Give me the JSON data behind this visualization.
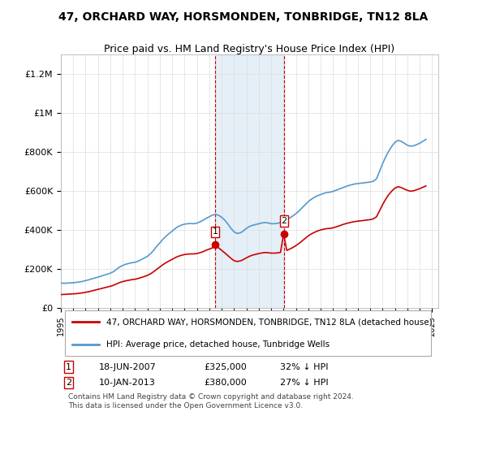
{
  "title": "47, ORCHARD WAY, HORSMONDEN, TONBRIDGE, TN12 8LA",
  "subtitle": "Price paid vs. HM Land Registry's House Price Index (HPI)",
  "ylabel_ticks": [
    "£0",
    "£200K",
    "£400K",
    "£600K",
    "£800K",
    "£1M",
    "£1.2M"
  ],
  "ytick_values": [
    0,
    200000,
    400000,
    600000,
    800000,
    1000000,
    1200000
  ],
  "ylim": [
    0,
    1300000
  ],
  "xlim_start": 1995.0,
  "xlim_end": 2025.5,
  "legend1_label": "47, ORCHARD WAY, HORSMONDEN, TONBRIDGE, TN12 8LA (detached house)",
  "legend2_label": "HPI: Average price, detached house, Tunbridge Wells",
  "sale1_date": 2007.46,
  "sale1_price": 325000,
  "sale1_label": "1",
  "sale1_text": "18-JUN-2007    £325,000    32% ↓ HPI",
  "sale2_date": 2013.03,
  "sale2_price": 380000,
  "sale2_label": "2",
  "sale2_text": "10-JAN-2013    £380,000    27% ↓ HPI",
  "shade_color": "#cce0f0",
  "line_red": "#cc0000",
  "line_blue": "#5599cc",
  "copyright_text": "Contains HM Land Registry data © Crown copyright and database right 2024.\nThis data is licensed under the Open Government Licence v3.0.",
  "xtick_years": [
    1995,
    1996,
    1997,
    1998,
    1999,
    2000,
    2001,
    2002,
    2003,
    2004,
    2005,
    2006,
    2007,
    2008,
    2009,
    2010,
    2011,
    2012,
    2013,
    2014,
    2015,
    2016,
    2017,
    2018,
    2019,
    2020,
    2021,
    2022,
    2023,
    2024,
    2025
  ],
  "hpi_data_x": [
    1995.0,
    1995.25,
    1995.5,
    1995.75,
    1996.0,
    1996.25,
    1996.5,
    1996.75,
    1997.0,
    1997.25,
    1997.5,
    1997.75,
    1998.0,
    1998.25,
    1998.5,
    1998.75,
    1999.0,
    1999.25,
    1999.5,
    1999.75,
    2000.0,
    2000.25,
    2000.5,
    2000.75,
    2001.0,
    2001.25,
    2001.5,
    2001.75,
    2002.0,
    2002.25,
    2002.5,
    2002.75,
    2003.0,
    2003.25,
    2003.5,
    2003.75,
    2004.0,
    2004.25,
    2004.5,
    2004.75,
    2005.0,
    2005.25,
    2005.5,
    2005.75,
    2006.0,
    2006.25,
    2006.5,
    2006.75,
    2007.0,
    2007.25,
    2007.5,
    2007.75,
    2008.0,
    2008.25,
    2008.5,
    2008.75,
    2009.0,
    2009.25,
    2009.5,
    2009.75,
    2010.0,
    2010.25,
    2010.5,
    2010.75,
    2011.0,
    2011.25,
    2011.5,
    2011.75,
    2012.0,
    2012.25,
    2012.5,
    2012.75,
    2013.0,
    2013.25,
    2013.5,
    2013.75,
    2014.0,
    2014.25,
    2014.5,
    2014.75,
    2015.0,
    2015.25,
    2015.5,
    2015.75,
    2016.0,
    2016.25,
    2016.5,
    2016.75,
    2017.0,
    2017.25,
    2017.5,
    2017.75,
    2018.0,
    2018.25,
    2018.5,
    2018.75,
    2019.0,
    2019.25,
    2019.5,
    2019.75,
    2020.0,
    2020.25,
    2020.5,
    2020.75,
    2021.0,
    2021.25,
    2021.5,
    2021.75,
    2022.0,
    2022.25,
    2022.5,
    2022.75,
    2023.0,
    2023.25,
    2023.5,
    2023.75,
    2024.0,
    2024.25,
    2024.5
  ],
  "hpi_data_y": [
    128000,
    126000,
    127000,
    128000,
    129000,
    131000,
    133000,
    136000,
    140000,
    144000,
    149000,
    153000,
    158000,
    163000,
    168000,
    173000,
    178000,
    186000,
    198000,
    210000,
    218000,
    224000,
    228000,
    232000,
    234000,
    240000,
    248000,
    256000,
    265000,
    278000,
    296000,
    316000,
    334000,
    352000,
    368000,
    382000,
    394000,
    408000,
    418000,
    425000,
    430000,
    432000,
    433000,
    432000,
    435000,
    442000,
    450000,
    460000,
    468000,
    476000,
    480000,
    475000,
    465000,
    450000,
    430000,
    408000,
    390000,
    382000,
    385000,
    395000,
    408000,
    418000,
    424000,
    428000,
    432000,
    436000,
    438000,
    436000,
    432000,
    432000,
    434000,
    438000,
    444000,
    452000,
    462000,
    472000,
    484000,
    498000,
    514000,
    530000,
    546000,
    558000,
    568000,
    576000,
    582000,
    588000,
    592000,
    594000,
    598000,
    604000,
    610000,
    616000,
    622000,
    628000,
    632000,
    636000,
    638000,
    640000,
    642000,
    644000,
    646000,
    650000,
    662000,
    700000,
    740000,
    775000,
    805000,
    830000,
    850000,
    860000,
    855000,
    845000,
    835000,
    830000,
    832000,
    838000,
    845000,
    855000,
    865000
  ],
  "price_data_x": [
    1995.0,
    1995.25,
    1995.5,
    1995.75,
    1996.0,
    1996.25,
    1996.5,
    1996.75,
    1997.0,
    1997.25,
    1997.5,
    1997.75,
    1998.0,
    1998.25,
    1998.5,
    1998.75,
    1999.0,
    1999.25,
    1999.5,
    1999.75,
    2000.0,
    2000.25,
    2000.5,
    2000.75,
    2001.0,
    2001.25,
    2001.5,
    2001.75,
    2002.0,
    2002.25,
    2002.5,
    2002.75,
    2003.0,
    2003.25,
    2003.5,
    2003.75,
    2004.0,
    2004.25,
    2004.5,
    2004.75,
    2005.0,
    2005.25,
    2005.5,
    2005.75,
    2006.0,
    2006.25,
    2006.5,
    2006.75,
    2007.0,
    2007.25,
    2007.46,
    2007.75,
    2008.0,
    2008.25,
    2008.5,
    2008.75,
    2009.0,
    2009.25,
    2009.5,
    2009.75,
    2010.0,
    2010.25,
    2010.5,
    2010.75,
    2011.0,
    2011.25,
    2011.5,
    2011.75,
    2012.0,
    2012.25,
    2012.5,
    2012.75,
    2013.0,
    2013.25,
    2013.5,
    2013.75,
    2014.0,
    2014.25,
    2014.5,
    2014.75,
    2015.0,
    2015.25,
    2015.5,
    2015.75,
    2016.0,
    2016.25,
    2016.5,
    2016.75,
    2017.0,
    2017.25,
    2017.5,
    2017.75,
    2018.0,
    2018.25,
    2018.5,
    2018.75,
    2019.0,
    2019.25,
    2019.5,
    2019.75,
    2020.0,
    2020.25,
    2020.5,
    2020.75,
    2021.0,
    2021.25,
    2021.5,
    2021.75,
    2022.0,
    2022.25,
    2022.5,
    2022.75,
    2023.0,
    2023.25,
    2023.5,
    2023.75,
    2024.0,
    2024.25,
    2024.5
  ],
  "price_data_y": [
    68000,
    69000,
    70000,
    71000,
    72000,
    73000,
    75000,
    77000,
    80000,
    83000,
    87000,
    91000,
    95000,
    99000,
    103000,
    107000,
    111000,
    116000,
    123000,
    130000,
    135000,
    139000,
    142000,
    145000,
    147000,
    151000,
    156000,
    161000,
    167000,
    175000,
    186000,
    198000,
    210000,
    222000,
    232000,
    241000,
    249000,
    258000,
    265000,
    270000,
    274000,
    276000,
    277000,
    277000,
    279000,
    283000,
    289000,
    296000,
    302000,
    308000,
    325000,
    308000,
    295000,
    282000,
    268000,
    254000,
    242000,
    238000,
    241000,
    248000,
    257000,
    265000,
    271000,
    275000,
    279000,
    282000,
    284000,
    283000,
    281000,
    281000,
    282000,
    285000,
    380000,
    295000,
    302000,
    310000,
    320000,
    331000,
    344000,
    357000,
    370000,
    380000,
    388000,
    395000,
    400000,
    404000,
    407000,
    408000,
    411000,
    416000,
    421000,
    427000,
    432000,
    436000,
    440000,
    443000,
    445000,
    447000,
    449000,
    451000,
    453000,
    457000,
    467000,
    498000,
    530000,
    558000,
    582000,
    600000,
    615000,
    622000,
    618000,
    610000,
    603000,
    599000,
    601000,
    606000,
    612000,
    619000,
    626000
  ]
}
